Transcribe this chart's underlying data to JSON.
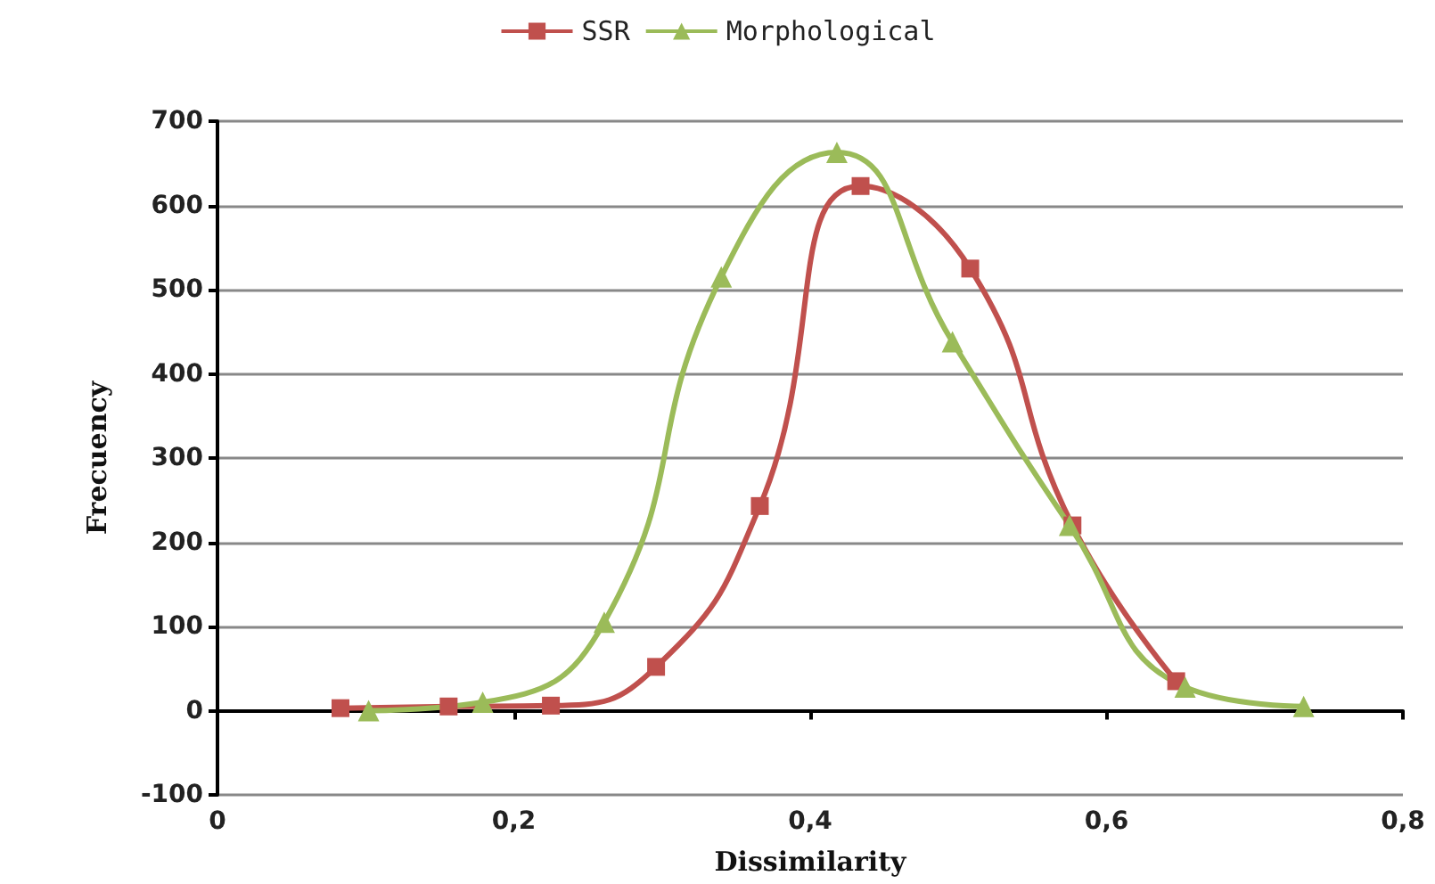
{
  "chart_data": {
    "type": "line",
    "xlabel": "Dissimilarity",
    "ylabel": "Frecuency",
    "xlim": [
      0,
      0.8
    ],
    "xticks": [
      0,
      {
        "value": 0.2,
        "label": "0,2"
      },
      {
        "value": 0.4,
        "label": "0,4"
      },
      {
        "value": 0.6,
        "label": "0,6"
      },
      {
        "value": 0.8,
        "label": "0,8"
      }
    ],
    "ylim": [
      -100,
      700
    ],
    "yticks": [
      -100,
      0,
      100,
      200,
      300,
      400,
      500,
      600,
      700
    ],
    "grid": "y",
    "legend": "top",
    "line_style": "solid",
    "series": [
      {
        "name": "SSR",
        "color": "#c0504d",
        "marker": "square",
        "x": [
          0.083,
          0.156,
          0.225,
          0.296,
          0.366,
          0.434,
          0.508,
          0.577,
          0.647
        ],
        "values": [
          3,
          5,
          6,
          52,
          243,
          623,
          525,
          220,
          35
        ]
      },
      {
        "name": "Morphological",
        "color": "#9bbb59",
        "marker": "triangle",
        "x": [
          0.102,
          0.179,
          0.261,
          0.34,
          0.418,
          0.496,
          0.575,
          0.653,
          0.733
        ],
        "values": [
          0,
          10,
          105,
          515,
          663,
          438,
          220,
          28,
          5
        ]
      }
    ]
  }
}
